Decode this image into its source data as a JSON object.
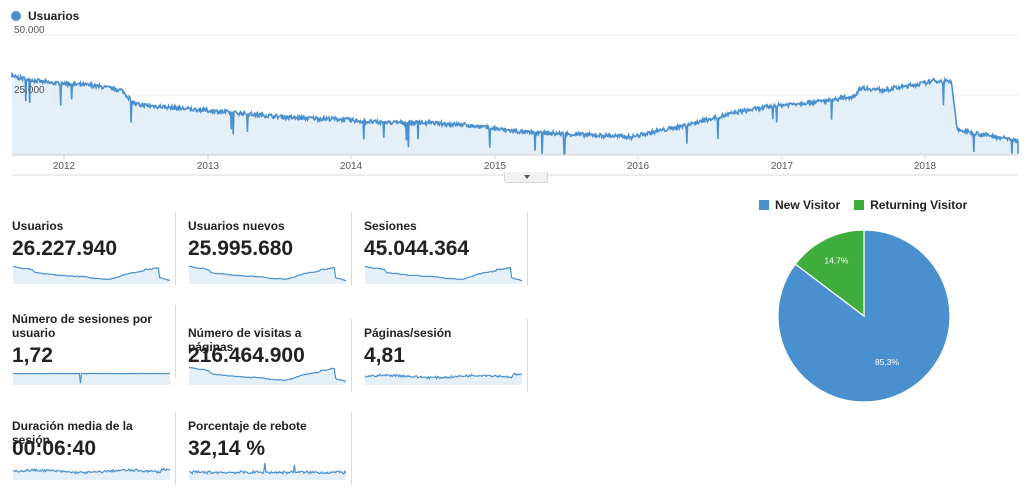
{
  "main_legend": {
    "label": "Usuarios",
    "color": "#4a90cf"
  },
  "chart_data": [
    {
      "type": "line",
      "series": [
        {
          "name": "Usuarios",
          "x": [
            2011.5,
            2011.7,
            2011.9,
            2012.2,
            2012.4,
            2012.5,
            2012.7,
            2013.0,
            2013.3,
            2013.6,
            2013.9,
            2014.2,
            2014.5,
            2014.8,
            2015.0,
            2015.2,
            2015.4,
            2015.6,
            2015.8,
            2015.95,
            2016.1,
            2016.3,
            2016.5,
            2016.7,
            2016.9,
            2017.1,
            2017.3,
            2017.5,
            2017.55,
            2017.7,
            2017.9,
            2018.0,
            2018.05,
            2018.18,
            2018.22,
            2018.4,
            2018.6,
            2018.7
          ],
          "values": [
            34000,
            32000,
            30000,
            29000,
            27000,
            21000,
            20000,
            18500,
            17000,
            15500,
            15000,
            13500,
            13500,
            12500,
            11000,
            9500,
            9000,
            8500,
            8000,
            7500,
            9500,
            12000,
            15000,
            18000,
            20000,
            21500,
            22500,
            24500,
            28000,
            27000,
            29000,
            30000,
            31000,
            30500,
            10500,
            8500,
            6500,
            5000
          ]
        }
      ],
      "xlabel": "",
      "ylabel": "",
      "xticks": [
        "2012",
        "2013",
        "2014",
        "2015",
        "2016",
        "2017",
        "2018"
      ],
      "yticks": [
        "25.000",
        "50.000"
      ],
      "ylim": [
        0,
        50000
      ],
      "grid": true,
      "fill": "#e5eff8",
      "line_color": "#4a90cf"
    },
    {
      "type": "pie",
      "categories": [
        "New Visitor",
        "Returning Visitor"
      ],
      "values": [
        85.3,
        14.7
      ],
      "labels": [
        "85,3%",
        "14,7%"
      ],
      "colors": [
        "#4a90cf",
        "#3fad3c"
      ],
      "legend": "top"
    }
  ],
  "metrics": [
    {
      "label": "Usuarios",
      "value": "26.227.940",
      "spark": "main"
    },
    {
      "label": "Usuarios nuevos",
      "value": "25.995.680",
      "spark": "main"
    },
    {
      "label": "Sesiones",
      "value": "45.044.364",
      "spark": "main"
    },
    {
      "label": "Número de sesiones por usuario",
      "value": "1,72",
      "spark": "flat-dip"
    },
    {
      "label": "Número de visitas a páginas",
      "value": "216.464.900",
      "spark": "main"
    },
    {
      "label": "Páginas/sesión",
      "value": "4,81",
      "spark": "wavy"
    },
    {
      "label": "Duración media de la sesión",
      "value": "00:06:40",
      "spark": "wavy"
    },
    {
      "label": "Porcentaje de rebote",
      "value": "32,14 %",
      "spark": "bumpy"
    }
  ]
}
